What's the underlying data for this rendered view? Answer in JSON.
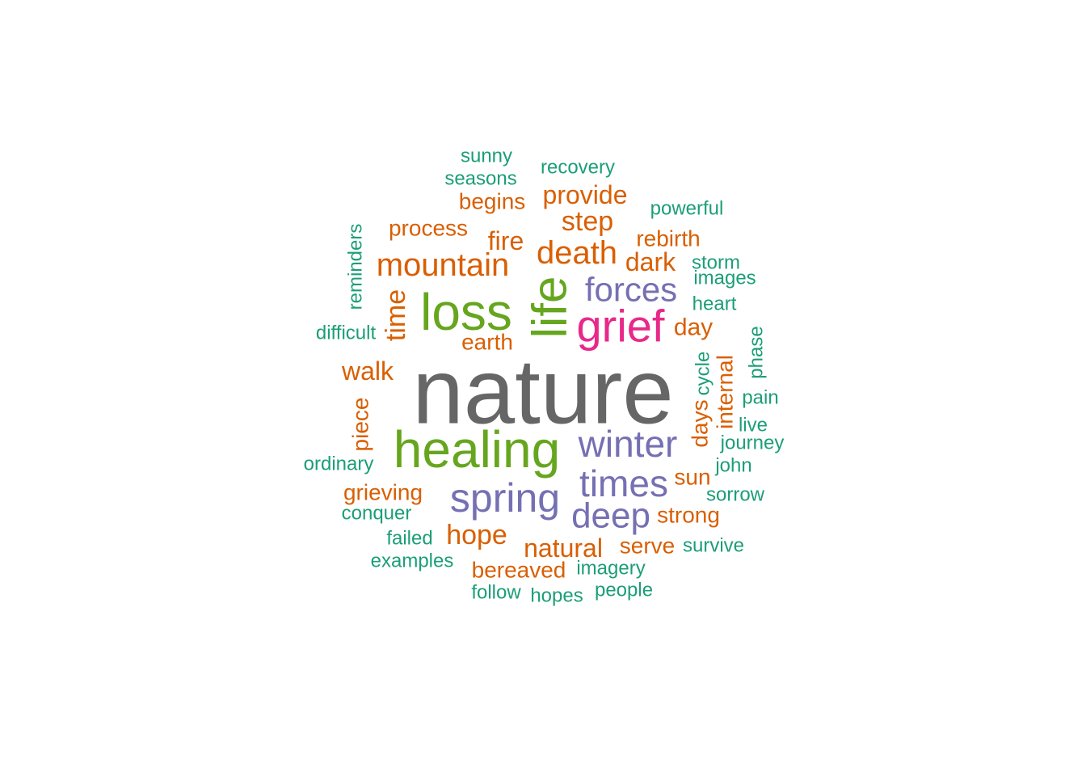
{
  "palette": {
    "teal": "#1b9e77",
    "orange": "#d95f02",
    "purple": "#7570b3",
    "pink": "#e7298a",
    "green": "#66a61e",
    "gray": "#666666"
  },
  "words": [
    {
      "text": "nature",
      "color": "gray",
      "rotated": false
    },
    {
      "text": "life",
      "color": "green",
      "rotated": true
    },
    {
      "text": "loss",
      "color": "green",
      "rotated": false
    },
    {
      "text": "healing",
      "color": "green",
      "rotated": false
    },
    {
      "text": "grief",
      "color": "pink",
      "rotated": false
    },
    {
      "text": "winter",
      "color": "purple",
      "rotated": false
    },
    {
      "text": "times",
      "color": "purple",
      "rotated": false
    },
    {
      "text": "spring",
      "color": "purple",
      "rotated": false
    },
    {
      "text": "deep",
      "color": "purple",
      "rotated": false
    },
    {
      "text": "forces",
      "color": "purple",
      "rotated": false
    },
    {
      "text": "mountain",
      "color": "orange",
      "rotated": false
    },
    {
      "text": "death",
      "color": "orange",
      "rotated": false
    },
    {
      "text": "time",
      "color": "orange",
      "rotated": true
    },
    {
      "text": "step",
      "color": "orange",
      "rotated": false
    },
    {
      "text": "provide",
      "color": "orange",
      "rotated": false
    },
    {
      "text": "dark",
      "color": "orange",
      "rotated": false
    },
    {
      "text": "hope",
      "color": "orange",
      "rotated": false
    },
    {
      "text": "natural",
      "color": "orange",
      "rotated": false
    },
    {
      "text": "walk",
      "color": "orange",
      "rotated": false
    },
    {
      "text": "fire",
      "color": "orange",
      "rotated": false
    },
    {
      "text": "rebirth",
      "color": "orange",
      "rotated": false
    },
    {
      "text": "process",
      "color": "orange",
      "rotated": false
    },
    {
      "text": "begins",
      "color": "orange",
      "rotated": false
    },
    {
      "text": "earth",
      "color": "orange",
      "rotated": false
    },
    {
      "text": "day",
      "color": "orange",
      "rotated": false
    },
    {
      "text": "days",
      "color": "orange",
      "rotated": true
    },
    {
      "text": "internal",
      "color": "orange",
      "rotated": true
    },
    {
      "text": "piece",
      "color": "orange",
      "rotated": true
    },
    {
      "text": "grieving",
      "color": "orange",
      "rotated": false
    },
    {
      "text": "sun",
      "color": "orange",
      "rotated": false
    },
    {
      "text": "strong",
      "color": "orange",
      "rotated": false
    },
    {
      "text": "serve",
      "color": "orange",
      "rotated": false
    },
    {
      "text": "bereaved",
      "color": "orange",
      "rotated": false
    },
    {
      "text": "sunny",
      "color": "teal",
      "rotated": false
    },
    {
      "text": "seasons",
      "color": "teal",
      "rotated": false
    },
    {
      "text": "recovery",
      "color": "teal",
      "rotated": false
    },
    {
      "text": "powerful",
      "color": "teal",
      "rotated": false
    },
    {
      "text": "reminders",
      "color": "teal",
      "rotated": true
    },
    {
      "text": "storm",
      "color": "teal",
      "rotated": false
    },
    {
      "text": "images",
      "color": "teal",
      "rotated": false
    },
    {
      "text": "heart",
      "color": "teal",
      "rotated": false
    },
    {
      "text": "difficult",
      "color": "teal",
      "rotated": false
    },
    {
      "text": "phase",
      "color": "teal",
      "rotated": true
    },
    {
      "text": "cycle",
      "color": "teal",
      "rotated": true
    },
    {
      "text": "pain",
      "color": "teal",
      "rotated": false
    },
    {
      "text": "live",
      "color": "teal",
      "rotated": false
    },
    {
      "text": "journey",
      "color": "teal",
      "rotated": false
    },
    {
      "text": "john",
      "color": "teal",
      "rotated": false
    },
    {
      "text": "ordinary",
      "color": "teal",
      "rotated": false
    },
    {
      "text": "sorrow",
      "color": "teal",
      "rotated": false
    },
    {
      "text": "conquer",
      "color": "teal",
      "rotated": false
    },
    {
      "text": "failed",
      "color": "teal",
      "rotated": false
    },
    {
      "text": "survive",
      "color": "teal",
      "rotated": false
    },
    {
      "text": "examples",
      "color": "teal",
      "rotated": false
    },
    {
      "text": "imagery",
      "color": "teal",
      "rotated": false
    },
    {
      "text": "follow",
      "color": "teal",
      "rotated": false
    },
    {
      "text": "hopes",
      "color": "teal",
      "rotated": false
    },
    {
      "text": "people",
      "color": "teal",
      "rotated": false
    }
  ]
}
